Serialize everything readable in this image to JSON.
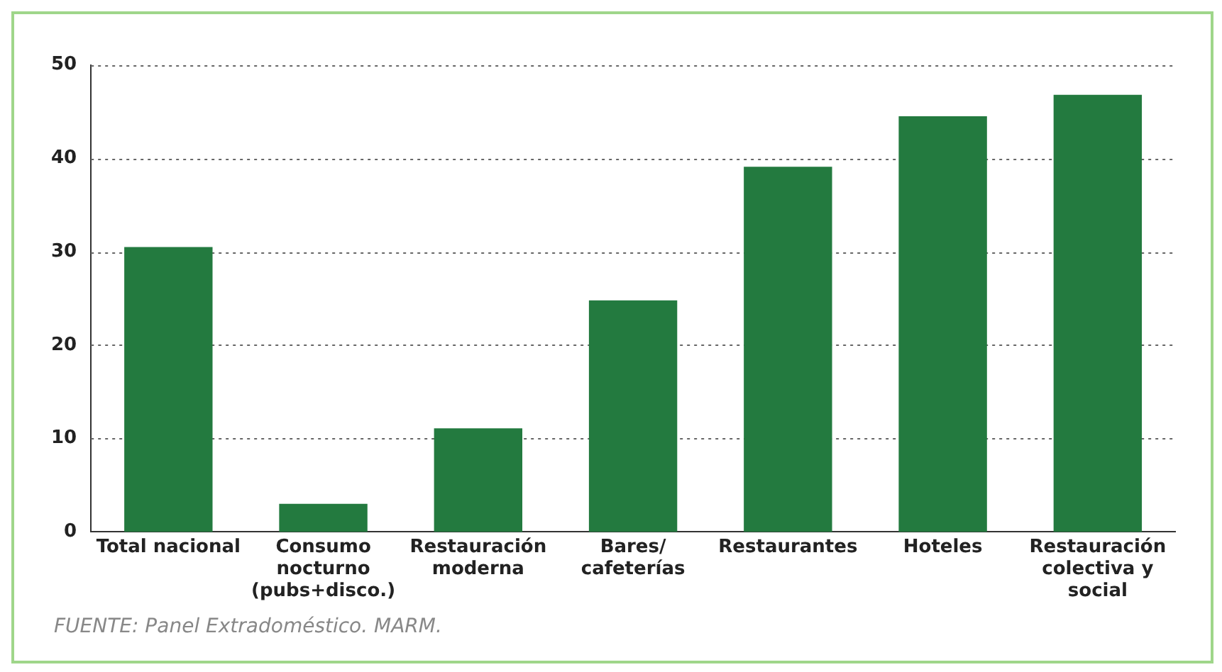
{
  "chart_data": {
    "type": "bar",
    "categories": [
      "Total nacional",
      "Consumo nocturno (pubs+disco.)",
      "Restauración moderna",
      "Bares/ cafeterías",
      "Restaurantes",
      "Hoteles",
      "Restauración colectiva y social"
    ],
    "values": [
      30.5,
      3.0,
      11.1,
      24.8,
      39.1,
      44.5,
      46.8
    ],
    "color": "#237a3f",
    "ylim": [
      0,
      50
    ],
    "yticks": [
      0,
      10,
      20,
      30,
      40,
      50
    ],
    "grid": "y",
    "annotations": [
      "FUENTE: Panel Extradoméstico. MARM."
    ]
  }
}
